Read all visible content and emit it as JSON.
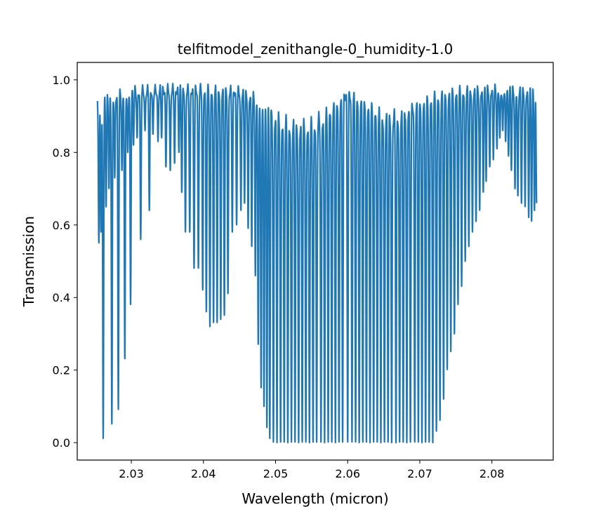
{
  "chart_data": {
    "type": "line",
    "title": "telfitmodel_zenithangle-0_humidity-1.0",
    "xlabel": "Wavelength (micron)",
    "ylabel": "Transmission",
    "xlim": [
      2.0225,
      2.0885
    ],
    "ylim": [
      -0.048,
      1.048
    ],
    "xticks": [
      2.03,
      2.04,
      2.05,
      2.06,
      2.07,
      2.08
    ],
    "xtick_labels": [
      "2.03",
      "2.04",
      "2.05",
      "2.06",
      "2.07",
      "2.08"
    ],
    "yticks": [
      0.0,
      0.2,
      0.4,
      0.6,
      0.8,
      1.0
    ],
    "ytick_labels": [
      "0.0",
      "0.2",
      "0.4",
      "0.6",
      "0.8",
      "1.0"
    ],
    "grid": false,
    "series": [
      {
        "color": "#1f77b4",
        "x_range": [
          2.0253,
          2.0862
        ],
        "continuum": [
          [
            2.0253,
            0.95
          ],
          [
            2.027,
            0.97
          ],
          [
            2.03,
            0.985
          ],
          [
            2.035,
            0.99
          ],
          [
            2.04,
            0.99
          ],
          [
            2.045,
            0.985
          ],
          [
            2.048,
            0.96
          ],
          [
            2.05,
            0.92
          ],
          [
            2.052,
            0.9
          ],
          [
            2.055,
            0.9
          ],
          [
            2.058,
            0.94
          ],
          [
            2.06,
            0.98
          ],
          [
            2.062,
            0.955
          ],
          [
            2.064,
            0.93
          ],
          [
            2.066,
            0.92
          ],
          [
            2.068,
            0.93
          ],
          [
            2.07,
            0.95
          ],
          [
            2.072,
            0.97
          ],
          [
            2.075,
            0.985
          ],
          [
            2.08,
            0.99
          ],
          [
            2.0862,
            0.985
          ]
        ],
        "absorption_lines": [
          [
            2.0255,
            0.55
          ],
          [
            2.0258,
            0.58
          ],
          [
            2.0261,
            0.01
          ],
          [
            2.0265,
            0.65
          ],
          [
            2.0269,
            0.7
          ],
          [
            2.0273,
            0.05
          ],
          [
            2.0277,
            0.73
          ],
          [
            2.0282,
            0.09
          ],
          [
            2.0287,
            0.75
          ],
          [
            2.0291,
            0.23
          ],
          [
            2.0295,
            0.8
          ],
          [
            2.0299,
            0.38
          ],
          [
            2.0303,
            0.82
          ],
          [
            2.0308,
            0.84
          ],
          [
            2.0313,
            0.56
          ],
          [
            2.0319,
            0.86
          ],
          [
            2.0325,
            0.64
          ],
          [
            2.033,
            0.85
          ],
          [
            2.0337,
            0.83
          ],
          [
            2.0342,
            0.84
          ],
          [
            2.0348,
            0.76
          ],
          [
            2.0354,
            0.75
          ],
          [
            2.036,
            0.77
          ],
          [
            2.0366,
            0.8
          ],
          [
            2.037,
            0.69
          ],
          [
            2.0375,
            0.58
          ],
          [
            2.0381,
            0.58
          ],
          [
            2.0387,
            0.48
          ],
          [
            2.0393,
            0.48
          ],
          [
            2.0399,
            0.42
          ],
          [
            2.0404,
            0.36
          ],
          [
            2.0409,
            0.32
          ],
          [
            2.0414,
            0.33
          ],
          [
            2.0419,
            0.33
          ],
          [
            2.0424,
            0.34
          ],
          [
            2.0429,
            0.35
          ],
          [
            2.0434,
            0.41
          ],
          [
            2.044,
            0.58
          ],
          [
            2.0446,
            0.6
          ],
          [
            2.0452,
            0.64
          ],
          [
            2.0457,
            0.66
          ],
          [
            2.0462,
            0.59
          ],
          [
            2.0467,
            0.54
          ],
          [
            2.0472,
            0.46
          ],
          [
            2.0476,
            0.27
          ],
          [
            2.048,
            0.15
          ],
          [
            2.0484,
            0.1
          ],
          [
            2.0488,
            0.04
          ],
          [
            2.0492,
            0.01
          ],
          [
            2.0497,
            0.0
          ],
          [
            2.0502,
            0.0
          ],
          [
            2.0507,
            0.0
          ],
          [
            2.0512,
            0.0
          ],
          [
            2.0517,
            0.0
          ],
          [
            2.0522,
            0.0
          ],
          [
            2.0527,
            0.0
          ],
          [
            2.0532,
            0.0
          ],
          [
            2.0537,
            0.0
          ],
          [
            2.0542,
            0.0
          ],
          [
            2.0547,
            0.0
          ],
          [
            2.0552,
            0.0
          ],
          [
            2.0557,
            0.0
          ],
          [
            2.0563,
            0.0
          ],
          [
            2.0568,
            0.0
          ],
          [
            2.0573,
            0.0
          ],
          [
            2.0578,
            0.0
          ],
          [
            2.0583,
            0.0
          ],
          [
            2.0588,
            0.0
          ],
          [
            2.0593,
            0.0
          ],
          [
            2.06,
            0.0
          ],
          [
            2.0606,
            0.0
          ],
          [
            2.0611,
            0.0
          ],
          [
            2.0616,
            0.0
          ],
          [
            2.0621,
            0.0
          ],
          [
            2.0626,
            0.0
          ],
          [
            2.0631,
            0.0
          ],
          [
            2.0636,
            0.0
          ],
          [
            2.0641,
            0.0
          ],
          [
            2.0646,
            0.0
          ],
          [
            2.0651,
            0.0
          ],
          [
            2.0656,
            0.0
          ],
          [
            2.0661,
            0.0
          ],
          [
            2.0667,
            0.0
          ],
          [
            2.0672,
            0.0
          ],
          [
            2.0677,
            0.0
          ],
          [
            2.0682,
            0.0
          ],
          [
            2.0687,
            0.0
          ],
          [
            2.0693,
            0.0
          ],
          [
            2.0698,
            0.0
          ],
          [
            2.0703,
            0.0
          ],
          [
            2.0708,
            0.0
          ],
          [
            2.0713,
            0.0
          ],
          [
            2.0718,
            0.0
          ],
          [
            2.0723,
            0.03
          ],
          [
            2.0728,
            0.06
          ],
          [
            2.0733,
            0.12
          ],
          [
            2.0738,
            0.2
          ],
          [
            2.0743,
            0.25
          ],
          [
            2.0748,
            0.3
          ],
          [
            2.0753,
            0.38
          ],
          [
            2.0758,
            0.43
          ],
          [
            2.0763,
            0.5
          ],
          [
            2.0768,
            0.54
          ],
          [
            2.0773,
            0.58
          ],
          [
            2.0778,
            0.61
          ],
          [
            2.0783,
            0.64
          ],
          [
            2.0788,
            0.69
          ],
          [
            2.0792,
            0.72
          ],
          [
            2.0797,
            0.76
          ],
          [
            2.0802,
            0.78
          ],
          [
            2.0807,
            0.81
          ],
          [
            2.0811,
            0.84
          ],
          [
            2.0815,
            0.86
          ],
          [
            2.0819,
            0.83
          ],
          [
            2.0823,
            0.79
          ],
          [
            2.0827,
            0.75
          ],
          [
            2.0832,
            0.7
          ],
          [
            2.0836,
            0.68
          ],
          [
            2.0841,
            0.66
          ],
          [
            2.0846,
            0.65
          ],
          [
            2.0851,
            0.62
          ],
          [
            2.0855,
            0.61
          ],
          [
            2.0859,
            0.64
          ],
          [
            2.0862,
            0.66
          ]
        ]
      }
    ]
  }
}
